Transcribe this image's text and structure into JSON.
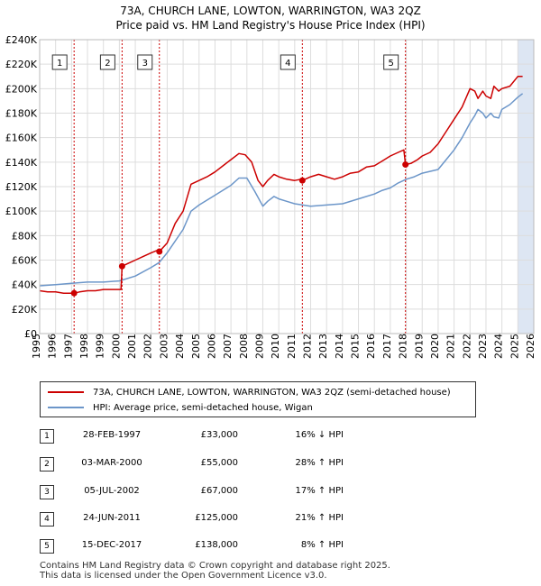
{
  "title_line1": "73A, CHURCH LANE, LOWTON, WARRINGTON, WA3 2QZ",
  "title_line2": "Price paid vs. HM Land Registry's House Price Index (HPI)",
  "colors": {
    "red": "#cc0000",
    "blue": "#6c96c9",
    "grid": "#dddddd",
    "highlight": "#dde6f3"
  },
  "legend": {
    "red_label": "73A, CHURCH LANE, LOWTON, WARRINGTON, WA3 2QZ (semi-detached house)",
    "blue_label": "HPI: Average price, semi-detached house, Wigan"
  },
  "transactions": [
    {
      "num": "1",
      "date": "28-FEB-1997",
      "price": "£33,000",
      "hpi": "16% ↓ HPI"
    },
    {
      "num": "2",
      "date": "03-MAR-2000",
      "price": "£55,000",
      "hpi": "28% ↑ HPI"
    },
    {
      "num": "3",
      "date": "05-JUL-2002",
      "price": "£67,000",
      "hpi": "17% ↑ HPI"
    },
    {
      "num": "4",
      "date": "24-JUN-2011",
      "price": "£125,000",
      "hpi": "21% ↑ HPI"
    },
    {
      "num": "5",
      "date": "15-DEC-2017",
      "price": "£138,000",
      "hpi": "8% ↑ HPI"
    }
  ],
  "footer_line1": "Contains HM Land Registry data © Crown copyright and database right 2025.",
  "footer_line2": "This data is licensed under the Open Government Licence v3.0.",
  "chart_data": {
    "type": "line",
    "title": "Price paid vs. HM Land Registry's House Price Index (HPI)",
    "xlabel": "",
    "ylabel": "",
    "xlim": [
      1995,
      2026
    ],
    "ylim": [
      0,
      240000
    ],
    "grid": true,
    "x_ticks": [
      1995,
      1996,
      1997,
      1998,
      1999,
      2000,
      2001,
      2002,
      2003,
      2004,
      2005,
      2006,
      2007,
      2008,
      2009,
      2010,
      2011,
      2012,
      2013,
      2014,
      2015,
      2016,
      2017,
      2018,
      2019,
      2020,
      2021,
      2022,
      2023,
      2024,
      2025,
      2026
    ],
    "y_ticks": [
      0,
      20000,
      40000,
      60000,
      80000,
      100000,
      120000,
      140000,
      160000,
      180000,
      200000,
      220000,
      240000
    ],
    "y_tick_labels": [
      "£0",
      "£20K",
      "£40K",
      "£60K",
      "£80K",
      "£100K",
      "£120K",
      "£140K",
      "£160K",
      "£180K",
      "£200K",
      "£220K",
      "£240K"
    ],
    "sale_markers": [
      {
        "label": "1",
        "x": 1997.16,
        "y": 33000
      },
      {
        "label": "2",
        "x": 2000.17,
        "y": 55000
      },
      {
        "label": "3",
        "x": 2002.51,
        "y": 67000
      },
      {
        "label": "4",
        "x": 2011.48,
        "y": 125000
      },
      {
        "label": "5",
        "x": 2017.95,
        "y": 138000
      }
    ],
    "highlight_range": [
      2025.0,
      2026.0
    ],
    "series": [
      {
        "name": "73A, CHURCH LANE, LOWTON, WARRINGTON, WA3 2QZ (semi-detached house)",
        "x": [
          1995.0,
          1995.5,
          1996.0,
          1996.5,
          1997.1,
          1997.16,
          1997.5,
          1998.0,
          1998.5,
          1999.0,
          1999.5,
          2000.1,
          2000.17,
          2000.5,
          2001.0,
          2001.5,
          2002.0,
          2002.4,
          2002.51,
          2003.0,
          2003.5,
          2004.0,
          2004.5,
          2005.0,
          2005.5,
          2006.0,
          2006.5,
          2007.0,
          2007.5,
          2007.9,
          2008.3,
          2008.7,
          2009.0,
          2009.3,
          2009.7,
          2010.0,
          2010.5,
          2011.0,
          2011.4,
          2011.48,
          2012.0,
          2012.5,
          2013.0,
          2013.5,
          2014.0,
          2014.5,
          2015.0,
          2015.5,
          2016.0,
          2016.5,
          2017.0,
          2017.5,
          2017.85,
          2017.95,
          2018.3,
          2018.7,
          2019.0,
          2019.5,
          2020.0,
          2020.5,
          2021.0,
          2021.5,
          2022.0,
          2022.3,
          2022.5,
          2022.8,
          2023.0,
          2023.3,
          2023.5,
          2023.8,
          2024.0,
          2024.5,
          2025.0,
          2025.3
        ],
        "values": [
          35000,
          34000,
          34000,
          33000,
          33000,
          33000,
          34000,
          35000,
          35000,
          36000,
          36000,
          36000,
          55000,
          57000,
          60000,
          63000,
          66000,
          68000,
          67000,
          74000,
          90000,
          100000,
          122000,
          125000,
          128000,
          132000,
          137000,
          142000,
          147000,
          146000,
          140000,
          125000,
          120000,
          125000,
          130000,
          128000,
          126000,
          125000,
          126000,
          125000,
          128000,
          130000,
          128000,
          126000,
          128000,
          131000,
          132000,
          136000,
          137000,
          141000,
          145000,
          148000,
          150000,
          138000,
          139000,
          142000,
          145000,
          148000,
          155000,
          165000,
          175000,
          185000,
          200000,
          198000,
          192000,
          198000,
          194000,
          192000,
          202000,
          198000,
          200000,
          202000,
          210000,
          210000
        ]
      },
      {
        "name": "HPI: Average price, semi-detached house, Wigan",
        "x": [
          1995.0,
          1996.0,
          1997.0,
          1998.0,
          1999.0,
          2000.0,
          2001.0,
          2002.0,
          2002.5,
          2003.0,
          2004.0,
          2004.5,
          2005.0,
          2006.0,
          2007.0,
          2007.5,
          2008.0,
          2008.5,
          2009.0,
          2009.3,
          2009.7,
          2010.0,
          2010.5,
          2011.0,
          2011.5,
          2012.0,
          2013.0,
          2014.0,
          2015.0,
          2016.0,
          2016.5,
          2017.0,
          2017.5,
          2018.0,
          2018.5,
          2019.0,
          2020.0,
          2020.5,
          2021.0,
          2021.5,
          2022.0,
          2022.3,
          2022.5,
          2022.8,
          2023.0,
          2023.3,
          2023.5,
          2023.8,
          2024.0,
          2024.5,
          2025.0,
          2025.3
        ],
        "values": [
          39000,
          40000,
          41000,
          42000,
          42000,
          43000,
          47000,
          54000,
          58000,
          66000,
          85000,
          100000,
          105000,
          113000,
          121000,
          127000,
          127000,
          116000,
          104000,
          108000,
          112000,
          110000,
          108000,
          106000,
          105000,
          104000,
          105000,
          106000,
          110000,
          114000,
          117000,
          119000,
          123000,
          126000,
          128000,
          131000,
          134000,
          142000,
          150000,
          160000,
          172000,
          178000,
          183000,
          180000,
          176000,
          180000,
          177000,
          176000,
          183000,
          187000,
          193000,
          196000
        ]
      }
    ]
  }
}
